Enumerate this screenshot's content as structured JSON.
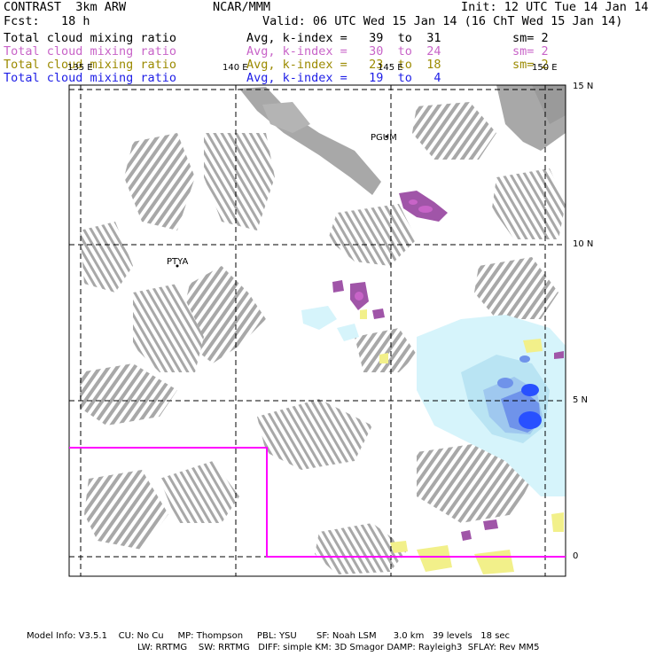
{
  "header": {
    "model": "CONTRAST  3km ARW",
    "center": "NCAR/MMM",
    "init": "Init: 12 UTC Tue 14 Jan 14",
    "fcst": "Fcst:   18 h",
    "valid": "Valid: 06 UTC Wed 15 Jan 14 (16 ChT Wed 15 Jan 14)"
  },
  "fields": [
    {
      "label": "Total cloud mixing ratio",
      "range": "Avg, k-index =   39  to  31",
      "sm": "sm= 2",
      "color": "#000000"
    },
    {
      "label": "Total cloud mixing ratio",
      "range": "Avg, k-index =   30  to  24",
      "sm": "sm= 2",
      "color": "#c864c8"
    },
    {
      "label": "Total cloud mixing ratio",
      "range": "Avg, k-index =   23  to  18",
      "sm": "sm= 2",
      "color": "#9b8a00"
    },
    {
      "label": "Total cloud mixing ratio",
      "range": "Avg, k-index =   19  to   4",
      "sm": "",
      "color": "#1e1ee6"
    }
  ],
  "map": {
    "lon_labels": [
      "135 E",
      "140 E",
      "145 E",
      "150 E"
    ],
    "lat_labels": [
      "15 N",
      "10 N",
      "5 N",
      "0"
    ],
    "stations": [
      {
        "name": "PGUM"
      },
      {
        "name": "PTYA"
      }
    ],
    "colors": {
      "cloud": "#a8a8a8",
      "grid": "#000000",
      "boundary": "#ff00ff",
      "cyan": "#d6f4fb",
      "purple": "#a055a8",
      "yellow": "#f2f08a",
      "blue": "#2850ff"
    }
  },
  "footer": {
    "line1": "Model Info: V3.5.1    CU: No Cu     MP: Thompson     PBL: YSU       SF: Noah LSM      3.0 km   39 levels   18 sec",
    "line2": "LW: RRTMG    SW: RRTMG   DIFF: simple KM: 3D Smagor DAMP: Rayleigh3  SFLAY: Rev MM5"
  }
}
